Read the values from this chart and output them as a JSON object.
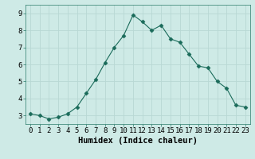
{
  "xlabel": "Humidex (Indice chaleur)",
  "x": [
    0,
    1,
    2,
    3,
    4,
    5,
    6,
    7,
    8,
    9,
    10,
    11,
    12,
    13,
    14,
    15,
    16,
    17,
    18,
    19,
    20,
    21,
    22,
    23
  ],
  "y": [
    3.1,
    3.0,
    2.8,
    2.9,
    3.1,
    3.5,
    4.3,
    5.1,
    6.1,
    7.0,
    7.7,
    8.9,
    8.5,
    8.0,
    8.3,
    7.5,
    7.3,
    6.6,
    5.9,
    5.8,
    5.0,
    4.6,
    3.6,
    3.5
  ],
  "line_color": "#1a6b5a",
  "marker": "D",
  "marker_size": 2.5,
  "bg_color": "#ceeae6",
  "grid_color": "#b8d8d4",
  "ylim": [
    2.5,
    9.5
  ],
  "xlim": [
    -0.5,
    23.5
  ],
  "yticks": [
    3,
    4,
    5,
    6,
    7,
    8,
    9
  ],
  "xticks": [
    0,
    1,
    2,
    3,
    4,
    5,
    6,
    7,
    8,
    9,
    10,
    11,
    12,
    13,
    14,
    15,
    16,
    17,
    18,
    19,
    20,
    21,
    22,
    23
  ],
  "xlabel_fontsize": 7.5,
  "tick_fontsize": 6.5
}
